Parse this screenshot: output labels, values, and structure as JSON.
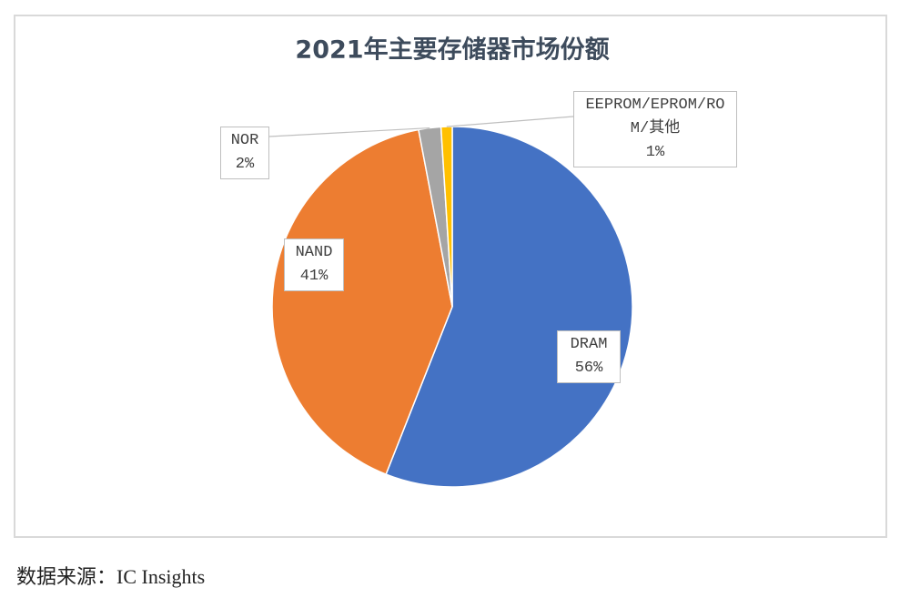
{
  "chart_data": {
    "type": "pie",
    "title": "2021年主要存储器市场份额",
    "categories": [
      "DRAM",
      "NAND",
      "NOR",
      "EEPROM/EPROM/ROM/其他"
    ],
    "values": [
      56,
      41,
      2,
      1
    ],
    "value_labels": [
      "56%",
      "41%",
      "2%",
      "1%"
    ],
    "colors": [
      "#4472c4",
      "#ed7d31",
      "#a5a5a5",
      "#ffc000"
    ]
  },
  "source": "数据来源：IC Insights"
}
